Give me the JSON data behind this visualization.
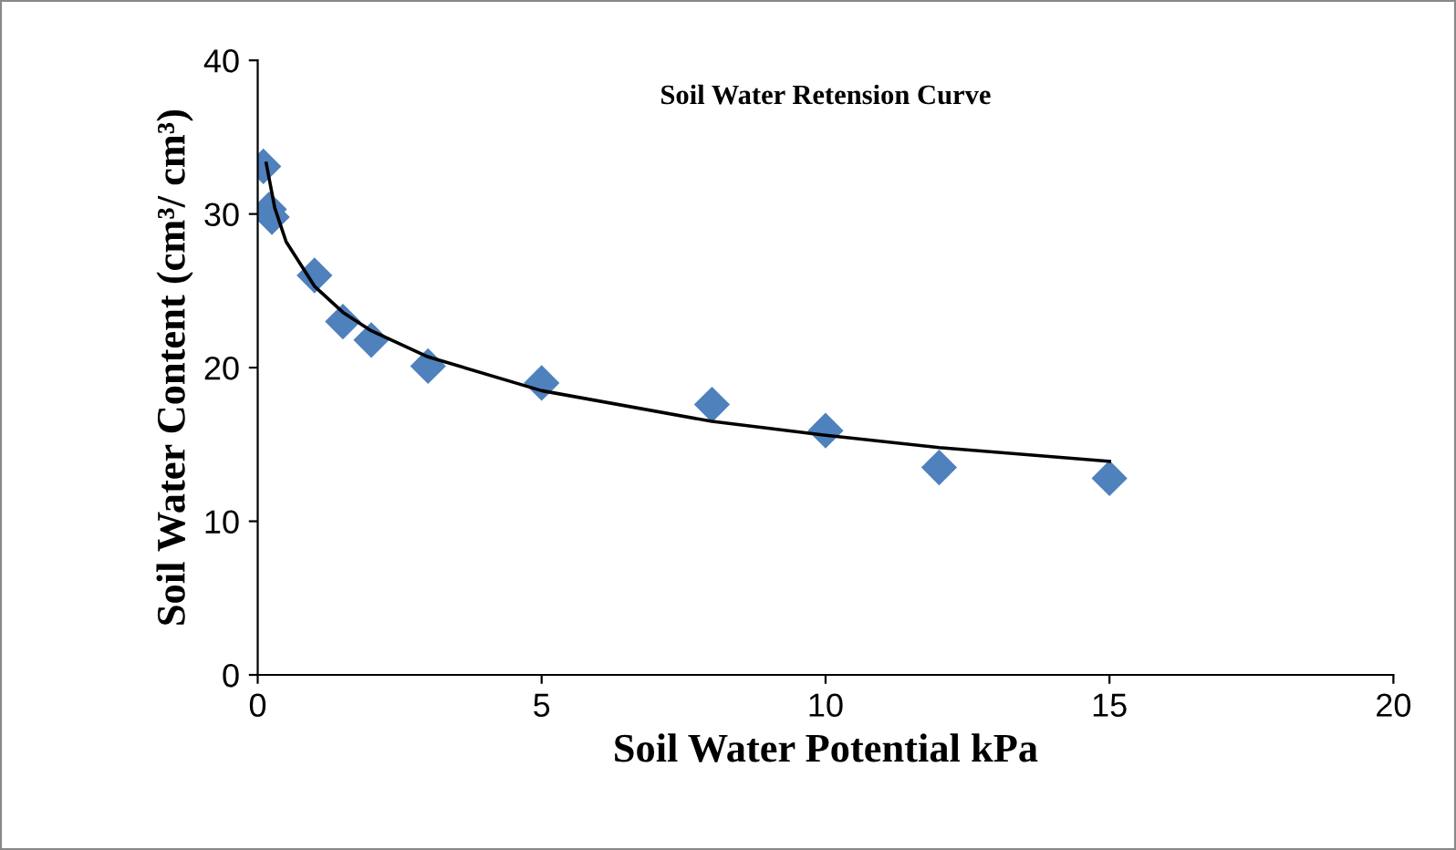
{
  "chart_data": {
    "type": "scatter",
    "title": "Soil Water Retension Curve",
    "xlabel": "Soil Water Potential kPa",
    "ylabel": "Soil Water Content (cm³/ cm³)",
    "xlim": [
      0,
      20
    ],
    "xticks": [
      0,
      5,
      10,
      15,
      20
    ],
    "ylim": [
      0,
      40
    ],
    "yticks": [
      0,
      10,
      20,
      30,
      40
    ],
    "grid": false,
    "legend": false,
    "marker": "diamond",
    "series": [
      {
        "color": "#4f81bd",
        "x": [
          0.1,
          0.2,
          0.25,
          1,
          1.5,
          2,
          3,
          5,
          8,
          10,
          12,
          15
        ],
        "values": [
          33.1,
          30.3,
          29.8,
          26.0,
          23.0,
          21.8,
          20.1,
          19.0,
          17.6,
          15.9,
          13.5,
          12.8
        ]
      },
      {
        "type": "line",
        "color": "#000000",
        "marker": "none",
        "line_style": "solid",
        "x": [
          0.15,
          0.3,
          0.5,
          1,
          1.5,
          2,
          3,
          5,
          8,
          10,
          12,
          15
        ],
        "values": [
          33.3,
          30.4,
          28.2,
          25.3,
          23.6,
          22.4,
          20.7,
          18.5,
          16.5,
          15.6,
          14.8,
          13.9
        ]
      }
    ]
  }
}
